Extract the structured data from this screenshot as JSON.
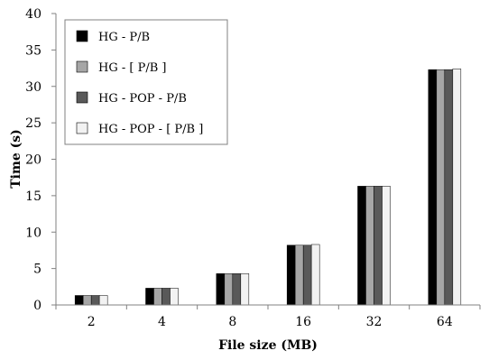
{
  "chart_data": {
    "type": "bar",
    "title": "",
    "xlabel": "File size (MB)",
    "ylabel": "Time (s)",
    "categories": [
      "2",
      "4",
      "8",
      "16",
      "32",
      "64"
    ],
    "ylim": [
      0,
      40
    ],
    "yticks": [
      "0",
      "5",
      "10",
      "15",
      "20",
      "25",
      "30",
      "35",
      "40"
    ],
    "ytick_values": [
      0,
      5,
      10,
      15,
      20,
      25,
      30,
      35,
      40
    ],
    "grid": false,
    "legend_position": "top-left",
    "series": [
      {
        "name": "HG - P/B",
        "color": "#000000",
        "values": [
          1.3,
          2.3,
          4.3,
          8.2,
          16.3,
          32.3
        ]
      },
      {
        "name": "HG - [ P/B ]",
        "color": "#a6a6a6",
        "values": [
          1.3,
          2.3,
          4.3,
          8.2,
          16.3,
          32.3
        ]
      },
      {
        "name": "HG - POP - P/B",
        "color": "#595959",
        "values": [
          1.3,
          2.3,
          4.3,
          8.2,
          16.3,
          32.3
        ]
      },
      {
        "name": "HG - POP - [ P/B ]",
        "color": "#f2f2f2",
        "values": [
          1.3,
          2.3,
          4.3,
          8.3,
          16.3,
          32.4
        ]
      }
    ]
  }
}
